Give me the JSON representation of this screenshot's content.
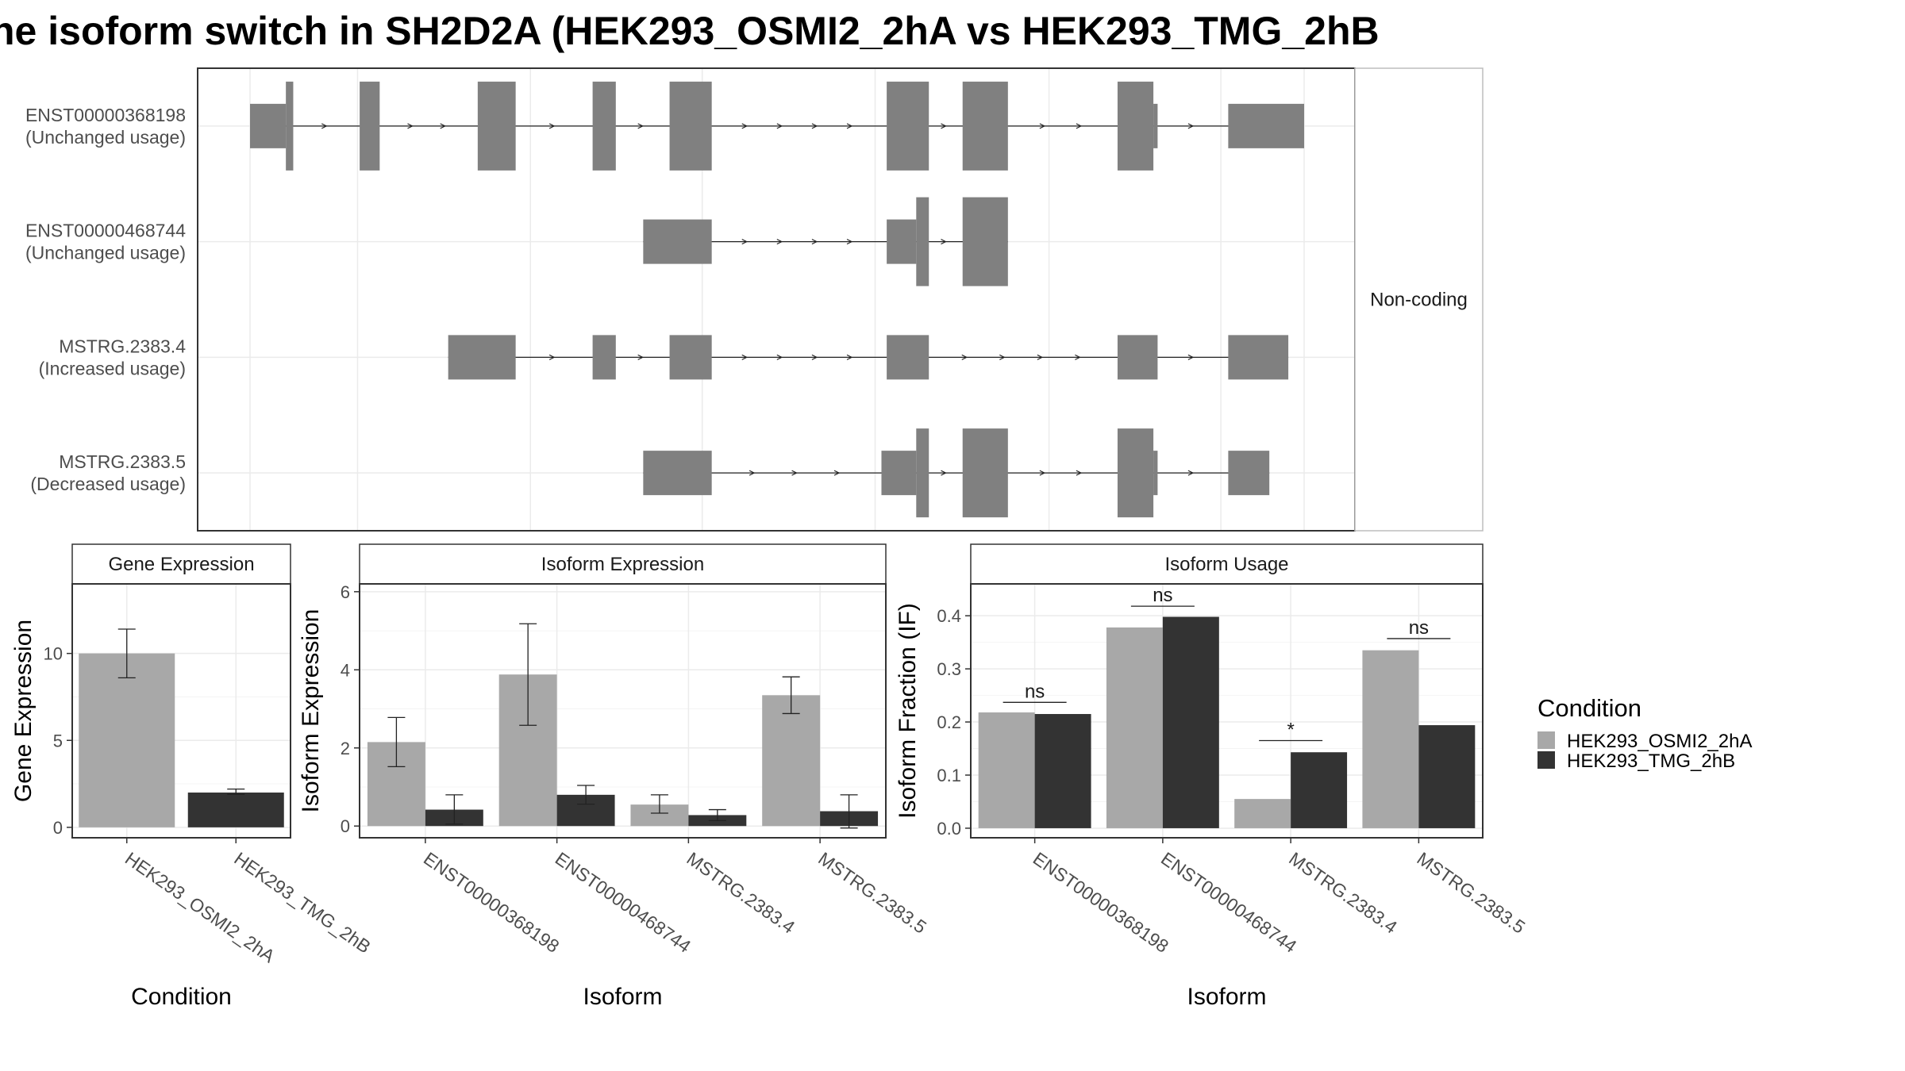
{
  "title": "ne isoform switch in SH2D2A (HEK293_OSMI2_2hA vs HEK293_TMG_2hB",
  "colors": {
    "condition_a": "#a8a8a8",
    "condition_b": "#333333",
    "transcript": "#808080",
    "panel_border": "#333333",
    "strip_fill": "#ffffff",
    "grid": "#ebebeb"
  },
  "legend": {
    "title": "Condition",
    "entries": [
      "HEK293_OSMI2_2hA",
      "HEK293_TMG_2hB"
    ],
    "placement": "right"
  },
  "chart_data": [
    {
      "type": "gene-structure",
      "facet_label": "Non-coding",
      "coordinate_range": [
        0,
        100
      ],
      "transcripts": [
        {
          "name": "ENST00000368198",
          "usage": "(Unchanged usage)",
          "exons": [
            {
              "start": 0,
              "end": 3.4,
              "size": "small"
            },
            {
              "start": 3.4,
              "end": 4.1,
              "size": "large"
            },
            {
              "start": 10.4,
              "end": 12.3,
              "size": "large"
            },
            {
              "start": 21.6,
              "end": 25.2,
              "size": "large"
            },
            {
              "start": 32.5,
              "end": 34.7,
              "size": "large"
            },
            {
              "start": 39.8,
              "end": 43.8,
              "size": "large"
            },
            {
              "start": 60.4,
              "end": 64.4,
              "size": "large"
            },
            {
              "start": 67.6,
              "end": 71.9,
              "size": "large"
            },
            {
              "start": 82.3,
              "end": 85.7,
              "size": "large"
            },
            {
              "start": 85.7,
              "end": 86.1,
              "size": "small"
            },
            {
              "start": 92.8,
              "end": 100,
              "size": "small"
            }
          ]
        },
        {
          "name": "ENST00000468744",
          "usage": "(Unchanged usage)",
          "exons": [
            {
              "start": 37.3,
              "end": 43.8,
              "size": "small"
            },
            {
              "start": 60.4,
              "end": 63.2,
              "size": "small"
            },
            {
              "start": 63.2,
              "end": 64.4,
              "size": "large"
            },
            {
              "start": 67.6,
              "end": 71.9,
              "size": "large"
            }
          ]
        },
        {
          "name": "MSTRG.2383.4",
          "usage": "(Increased usage)",
          "exons": [
            {
              "start": 18.8,
              "end": 25.2,
              "size": "small"
            },
            {
              "start": 32.5,
              "end": 34.7,
              "size": "small"
            },
            {
              "start": 39.8,
              "end": 43.8,
              "size": "small"
            },
            {
              "start": 60.4,
              "end": 64.4,
              "size": "small"
            },
            {
              "start": 82.3,
              "end": 86.1,
              "size": "small"
            },
            {
              "start": 92.8,
              "end": 98.5,
              "size": "small"
            }
          ]
        },
        {
          "name": "MSTRG.2383.5",
          "usage": "(Decreased usage)",
          "exons": [
            {
              "start": 37.3,
              "end": 43.8,
              "size": "small"
            },
            {
              "start": 59.9,
              "end": 63.2,
              "size": "small"
            },
            {
              "start": 63.2,
              "end": 64.4,
              "size": "large"
            },
            {
              "start": 67.6,
              "end": 71.9,
              "size": "large"
            },
            {
              "start": 82.3,
              "end": 85.7,
              "size": "large"
            },
            {
              "start": 85.7,
              "end": 86.1,
              "size": "small"
            },
            {
              "start": 92.8,
              "end": 96.7,
              "size": "small"
            }
          ]
        }
      ]
    },
    {
      "type": "bar",
      "strip": "Gene Expression",
      "xlabel": "Condition",
      "ylabel": "Gene Expression",
      "ylim": [
        -0.6,
        14
      ],
      "yticks": [
        0,
        5,
        10
      ],
      "categories": [
        "HEK293_OSMI2_2hA",
        "HEK293_TMG_2hB"
      ],
      "values": [
        10.0,
        2.0
      ],
      "errors": [
        [
          8.6,
          11.4
        ],
        [
          1.9,
          2.2
        ]
      ],
      "grid": true
    },
    {
      "type": "bar",
      "strip": "Isoform Expression",
      "xlabel": "Isoform",
      "ylabel": "Isoform Expression",
      "ylim": [
        -0.3,
        6.2
      ],
      "yticks": [
        0,
        2,
        4,
        6
      ],
      "categories": [
        "ENST00000368198",
        "ENST00000468744",
        "MSTRG.2383.4",
        "MSTRG.2383.5"
      ],
      "series": [
        {
          "values": [
            2.15,
            3.88,
            0.55,
            3.35
          ],
          "errors": [
            [
              1.52,
              2.78
            ],
            [
              2.58,
              5.18
            ],
            [
              0.33,
              0.8
            ],
            [
              2.88,
              3.82
            ]
          ]
        },
        {
          "values": [
            0.42,
            0.8,
            0.28,
            0.38
          ],
          "errors": [
            [
              0.05,
              0.8
            ],
            [
              0.56,
              1.04
            ],
            [
              0.14,
              0.42
            ],
            [
              -0.05,
              0.8
            ]
          ]
        }
      ],
      "grid": true
    },
    {
      "type": "bar",
      "strip": "Isoform Usage",
      "xlabel": "Isoform",
      "ylabel": "Isoform Fraction (IF)",
      "ylim": [
        -0.018,
        0.46
      ],
      "yticks": [
        0.0,
        0.1,
        0.2,
        0.3,
        0.4
      ],
      "categories": [
        "ENST00000368198",
        "ENST00000468744",
        "MSTRG.2383.4",
        "MSTRG.2383.5"
      ],
      "series": [
        {
          "values": [
            0.218,
            0.378,
            0.055,
            0.335
          ]
        },
        {
          "values": [
            0.215,
            0.398,
            0.143,
            0.194
          ]
        }
      ],
      "significance": [
        "ns",
        "ns",
        "*",
        "ns"
      ],
      "significance_y": [
        0.237,
        0.418,
        0.165,
        0.357
      ],
      "grid": true
    }
  ]
}
